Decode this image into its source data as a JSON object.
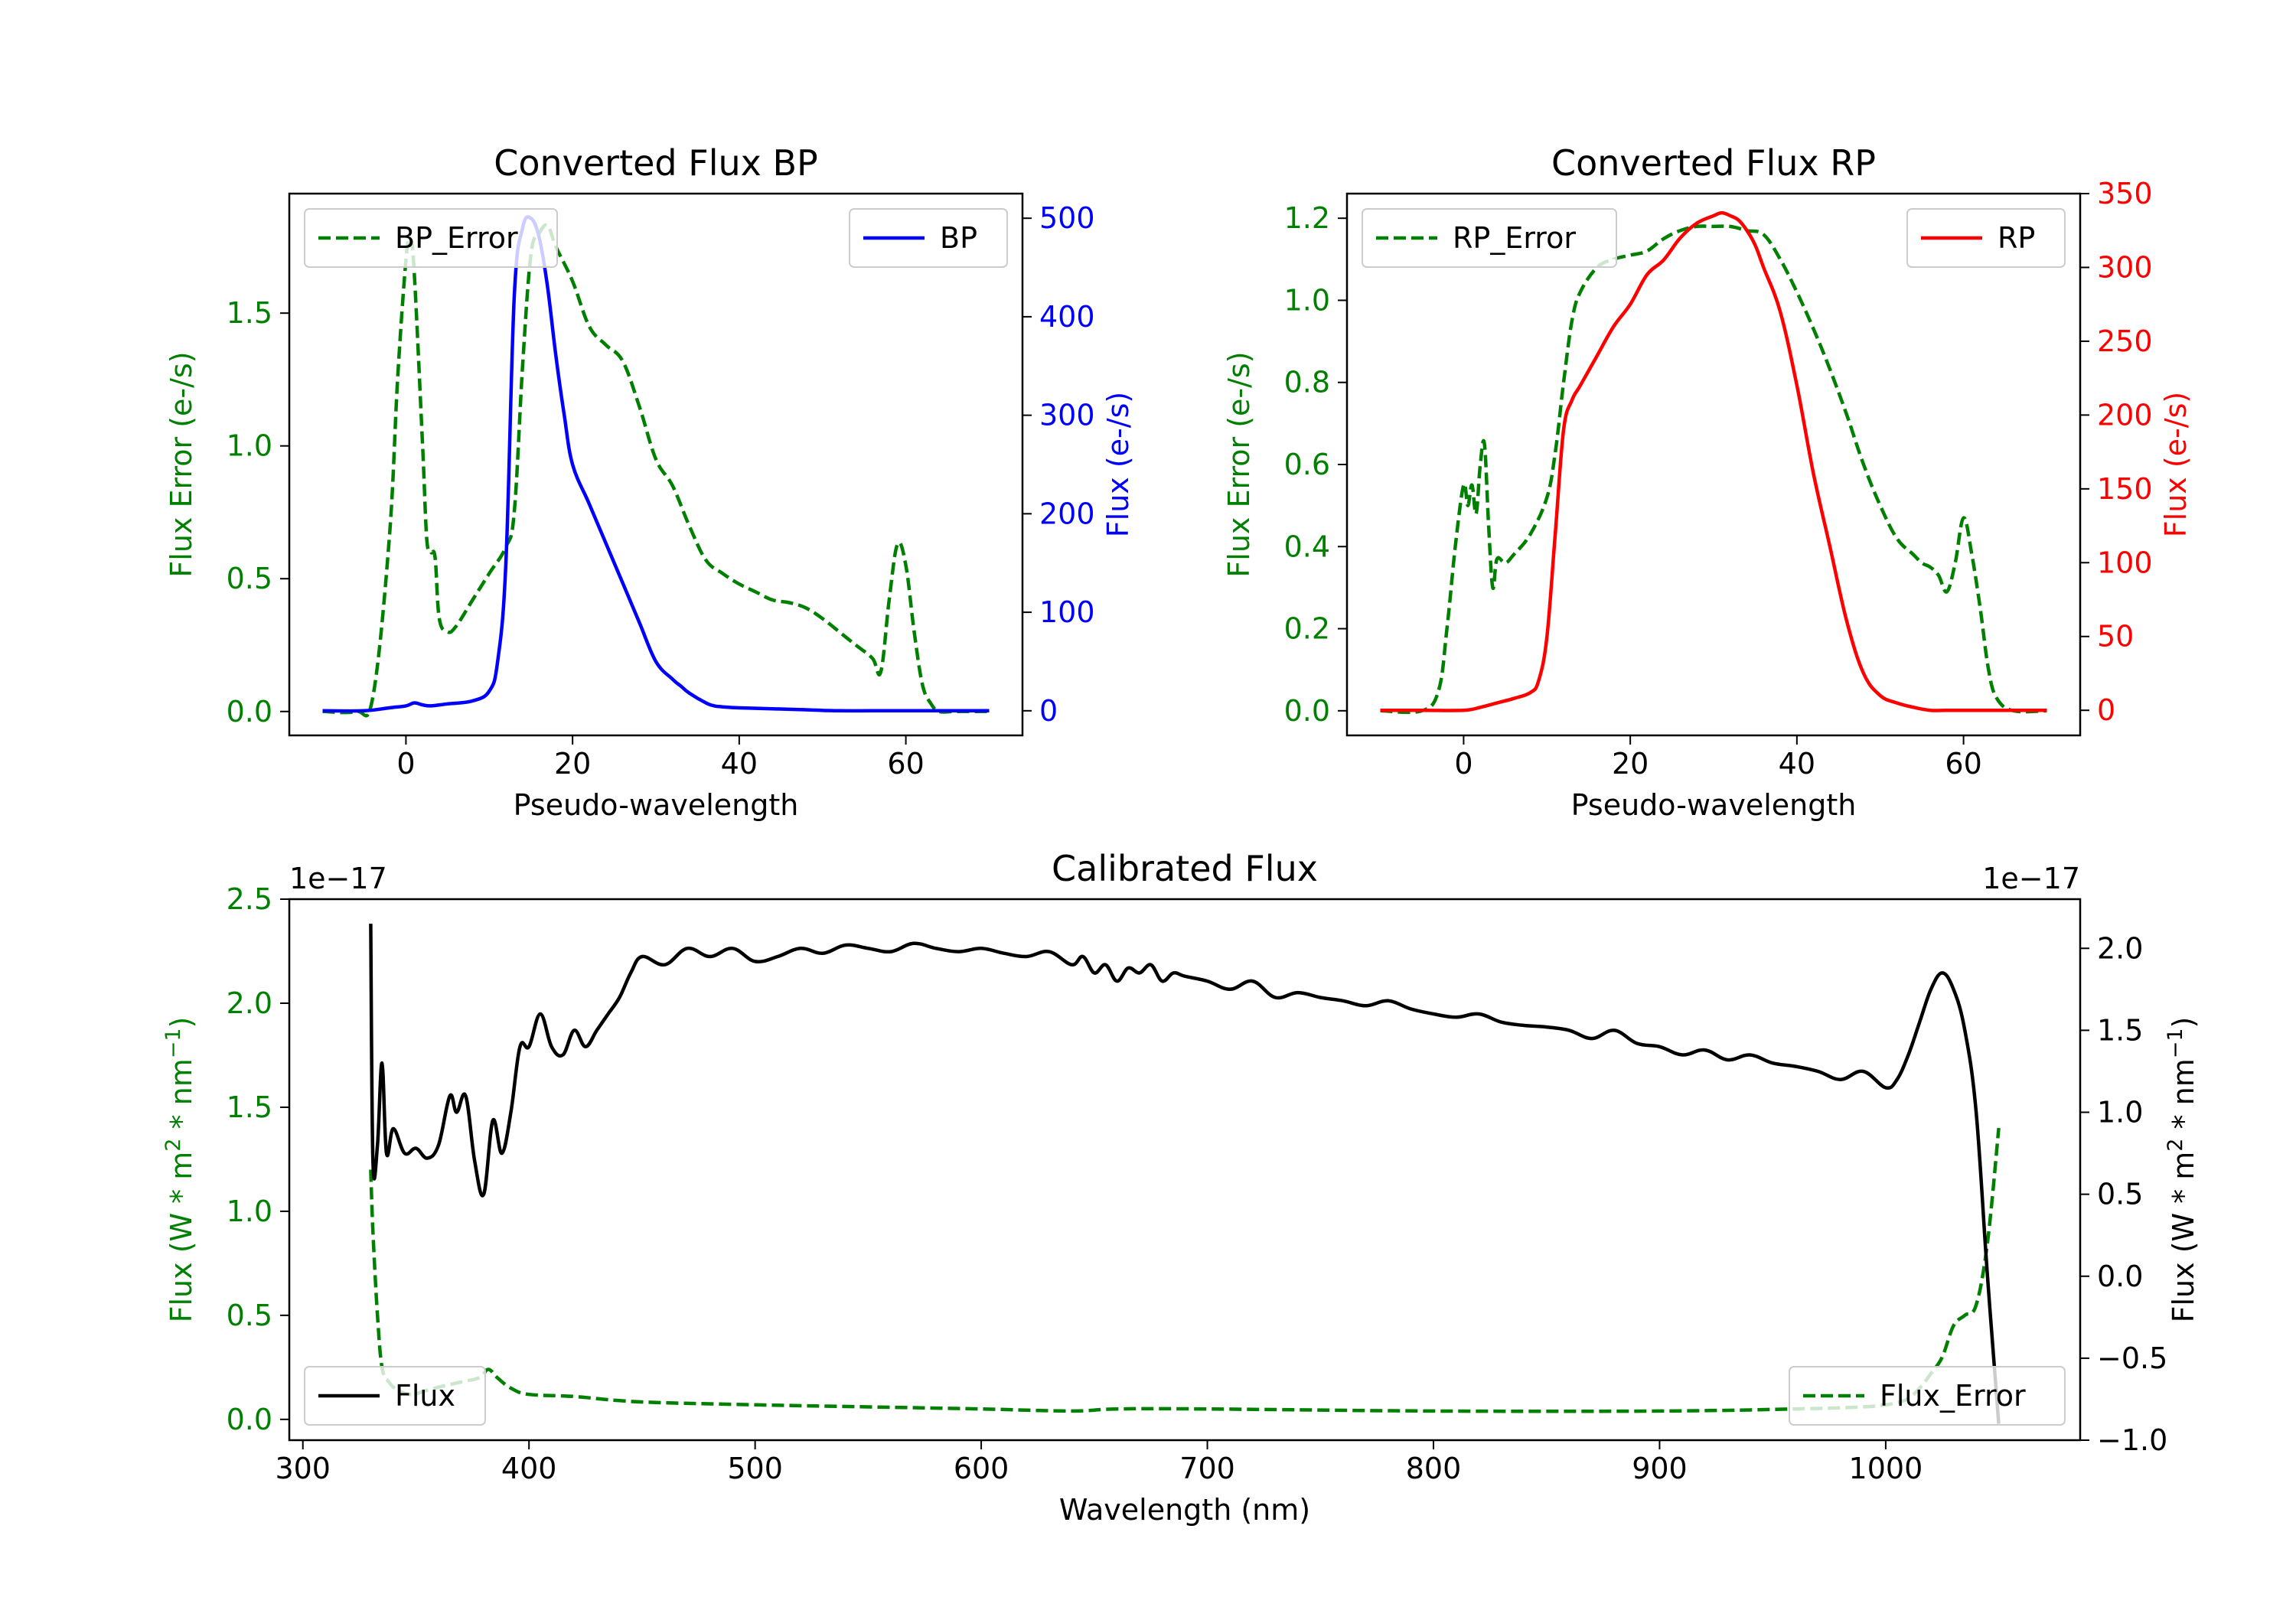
{
  "colors": {
    "error": "#008000",
    "bp": "#0000ff",
    "rp": "#ff0000",
    "flux": "#000000",
    "axis": "#000000"
  },
  "chart_data": [
    {
      "id": "bp",
      "type": "line",
      "title": "Converted Flux BP",
      "xlabel": "Pseudo-wavelength",
      "ylabel_left": "Flux Error (e-/s)",
      "ylabel_right": "Flux (e-/s)",
      "xlim": [
        -14,
        74
      ],
      "ylim_left": [
        -0.09,
        1.95
      ],
      "ylim_right": [
        -25,
        525
      ],
      "xticks": [
        0,
        20,
        40,
        60
      ],
      "yticks_left": [
        0.0,
        0.5,
        1.0,
        1.5
      ],
      "yticks_right": [
        0,
        100,
        200,
        300,
        400,
        500
      ],
      "ytick_labels_left": [
        "0.0",
        "0.5",
        "1.0",
        "1.5"
      ],
      "ytick_labels_right": [
        "0",
        "100",
        "200",
        "300",
        "400",
        "500"
      ],
      "xtick_labels": [
        "0",
        "20",
        "40",
        "60"
      ],
      "legend_left": {
        "label": "BP_Error",
        "position": "upper-left"
      },
      "legend_right": {
        "label": "BP",
        "position": "upper-right"
      },
      "series": [
        {
          "name": "BP_Error",
          "axis": "left",
          "style": "dashed",
          "color_key": "error",
          "x": [
            -10,
            -6,
            -4,
            -2,
            -1,
            0,
            0.5,
            1,
            2,
            2.5,
            3,
            3.5,
            4,
            5,
            6,
            8,
            10,
            12,
            13,
            14,
            15,
            16,
            17,
            18,
            20,
            22,
            24,
            26,
            28,
            30,
            32,
            34,
            36,
            38,
            40,
            42,
            44,
            46,
            48,
            50,
            52,
            54,
            56,
            57,
            58,
            59,
            60,
            61,
            62,
            63,
            64,
            66,
            70
          ],
          "y": [
            0.0,
            0.0,
            0.05,
            0.65,
            1.25,
            1.7,
            1.78,
            1.65,
            1.0,
            0.65,
            0.6,
            0.58,
            0.35,
            0.3,
            0.32,
            0.42,
            0.52,
            0.62,
            0.75,
            1.3,
            1.72,
            1.8,
            1.83,
            1.75,
            1.62,
            1.45,
            1.38,
            1.32,
            1.15,
            0.95,
            0.85,
            0.7,
            0.57,
            0.52,
            0.48,
            0.45,
            0.42,
            0.41,
            0.39,
            0.35,
            0.3,
            0.25,
            0.2,
            0.15,
            0.42,
            0.63,
            0.55,
            0.3,
            0.1,
            0.03,
            0.0,
            0.0,
            0.0
          ]
        },
        {
          "name": "BP",
          "axis": "right",
          "style": "solid",
          "color_key": "bp",
          "x": [
            -10,
            -5,
            -2,
            0,
            1,
            2,
            3,
            5,
            8,
            10,
            11,
            12,
            13,
            14,
            15,
            16,
            17,
            18,
            19,
            20,
            22,
            24,
            26,
            28,
            30,
            32,
            33,
            34,
            36,
            37,
            38,
            40,
            44,
            48,
            52,
            56,
            60,
            64,
            70
          ],
          "y": [
            0,
            0,
            3,
            5,
            8,
            6,
            5,
            7,
            10,
            20,
            50,
            150,
            420,
            490,
            500,
            480,
            430,
            360,
            300,
            250,
            210,
            170,
            130,
            90,
            50,
            32,
            25,
            18,
            8,
            5,
            4,
            3,
            2,
            1,
            0,
            0,
            0,
            0,
            0
          ]
        }
      ]
    },
    {
      "id": "rp",
      "type": "line",
      "title": "Converted Flux RP",
      "xlabel": "Pseudo-wavelength",
      "ylabel_left": "Flux Error (e-/s)",
      "ylabel_right": "Flux (e-/s)",
      "xlim": [
        -14,
        74
      ],
      "ylim_left": [
        -0.06,
        1.26
      ],
      "ylim_right": [
        -17,
        350
      ],
      "xticks": [
        0,
        20,
        40,
        60
      ],
      "yticks_left": [
        0.0,
        0.2,
        0.4,
        0.6,
        0.8,
        1.0,
        1.2
      ],
      "yticks_right": [
        0,
        50,
        100,
        150,
        200,
        250,
        300,
        350
      ],
      "ytick_labels_left": [
        "0.0",
        "0.2",
        "0.4",
        "0.6",
        "0.8",
        "1.0",
        "1.2"
      ],
      "ytick_labels_right": [
        "0",
        "50",
        "100",
        "150",
        "200",
        "250",
        "300",
        "350"
      ],
      "xtick_labels": [
        "0",
        "20",
        "40",
        "60"
      ],
      "legend_left": {
        "label": "RP_Error",
        "position": "upper-left"
      },
      "legend_right": {
        "label": "RP",
        "position": "upper-right"
      },
      "series": [
        {
          "name": "RP_Error",
          "axis": "left",
          "style": "dashed",
          "color_key": "error",
          "x": [
            -10,
            -5,
            -3,
            -2,
            -1,
            0,
            0.5,
            1,
            1.5,
            2,
            2.5,
            3,
            3.5,
            4,
            5,
            6,
            8,
            10,
            11,
            12,
            13,
            14,
            16,
            18,
            20,
            22,
            24,
            26,
            28,
            30,
            32,
            34,
            36,
            38,
            40,
            42,
            44,
            46,
            48,
            50,
            52,
            54,
            55,
            56,
            57,
            58,
            59,
            60,
            61,
            62,
            63,
            64,
            66,
            70
          ],
          "y": [
            0.0,
            0.0,
            0.05,
            0.2,
            0.4,
            0.55,
            0.5,
            0.55,
            0.48,
            0.6,
            0.65,
            0.45,
            0.3,
            0.37,
            0.36,
            0.38,
            0.43,
            0.52,
            0.63,
            0.8,
            0.95,
            1.02,
            1.08,
            1.1,
            1.11,
            1.12,
            1.15,
            1.17,
            1.18,
            1.18,
            1.18,
            1.17,
            1.16,
            1.1,
            1.02,
            0.93,
            0.83,
            0.72,
            0.6,
            0.5,
            0.42,
            0.38,
            0.36,
            0.35,
            0.33,
            0.29,
            0.36,
            0.47,
            0.38,
            0.25,
            0.1,
            0.03,
            0.0,
            0.0
          ]
        },
        {
          "name": "RP",
          "axis": "right",
          "style": "solid",
          "color_key": "rp",
          "x": [
            -10,
            -5,
            0,
            2,
            4,
            6,
            8,
            9,
            10,
            11,
            12,
            13,
            14,
            16,
            18,
            20,
            22,
            24,
            26,
            28,
            30,
            31,
            32,
            33,
            34,
            35,
            36,
            38,
            40,
            42,
            44,
            46,
            48,
            50,
            52,
            54,
            56,
            58,
            60,
            64,
            70
          ],
          "y": [
            0,
            0,
            0,
            2,
            5,
            8,
            12,
            20,
            50,
            120,
            190,
            210,
            220,
            240,
            260,
            275,
            295,
            305,
            320,
            330,
            335,
            337,
            335,
            332,
            325,
            315,
            300,
            270,
            220,
            160,
            110,
            60,
            25,
            10,
            5,
            2,
            0,
            0,
            0,
            0,
            0
          ]
        }
      ]
    },
    {
      "id": "calibrated",
      "type": "line",
      "title": "Calibrated Flux",
      "xlabel": "Wavelength (nm)",
      "ylabel_left": "Flux (W * m^2 * nm^-1)",
      "ylabel_right": "Flux (W * m^2 * nm^-1)",
      "offset_left": "1e−17",
      "offset_right": "1e−17",
      "xlim": [
        294,
        1086
      ],
      "ylim_left": [
        -0.1,
        2.5
      ],
      "ylim_right": [
        -1.0,
        2.3
      ],
      "xticks": [
        300,
        400,
        500,
        600,
        700,
        800,
        900,
        1000
      ],
      "xtick_labels": [
        "300",
        "400",
        "500",
        "600",
        "700",
        "800",
        "900",
        "1000"
      ],
      "yticks_left": [
        0.0,
        0.5,
        1.0,
        1.5,
        2.0,
        2.5
      ],
      "ytick_labels_left": [
        "0.0",
        "0.5",
        "1.0",
        "1.5",
        "2.0",
        "2.5"
      ],
      "yticks_right": [
        -1.0,
        -0.5,
        0.0,
        0.5,
        1.0,
        1.5,
        2.0
      ],
      "ytick_labels_right": [
        "−1.0",
        "−0.5",
        "0.0",
        "0.5",
        "1.0",
        "1.5",
        "2.0"
      ],
      "legend_flux": {
        "label": "Flux",
        "position": "lower-left"
      },
      "legend_error": {
        "label": "Flux_Error",
        "position": "lower-right"
      },
      "series": [
        {
          "name": "Flux",
          "axis": "right",
          "style": "solid",
          "color_key": "flux",
          "x": [
            330,
            331,
            333,
            335,
            337,
            340,
            345,
            350,
            355,
            360,
            365,
            368,
            372,
            376,
            380,
            384,
            388,
            392,
            396,
            400,
            405,
            410,
            415,
            420,
            425,
            430,
            435,
            440,
            445,
            450,
            460,
            470,
            480,
            490,
            500,
            510,
            520,
            530,
            540,
            550,
            560,
            570,
            580,
            590,
            600,
            610,
            620,
            630,
            640,
            645,
            650,
            655,
            660,
            665,
            670,
            675,
            680,
            685,
            690,
            700,
            710,
            720,
            730,
            740,
            750,
            760,
            770,
            780,
            790,
            800,
            810,
            820,
            830,
            840,
            850,
            860,
            870,
            880,
            890,
            900,
            910,
            920,
            930,
            940,
            950,
            960,
            970,
            980,
            990,
            1000,
            1005,
            1010,
            1015,
            1020,
            1025,
            1030,
            1035,
            1040,
            1045,
            1050
          ],
          "y": [
            2.15,
            0.7,
            0.8,
            1.3,
            0.75,
            0.9,
            0.75,
            0.78,
            0.72,
            0.8,
            1.1,
            1.0,
            1.1,
            0.7,
            0.5,
            0.95,
            0.75,
            1.0,
            1.4,
            1.4,
            1.6,
            1.4,
            1.35,
            1.5,
            1.4,
            1.5,
            1.6,
            1.7,
            1.85,
            1.95,
            1.9,
            2.0,
            1.95,
            2.0,
            1.92,
            1.95,
            2.0,
            1.97,
            2.02,
            2.0,
            1.98,
            2.03,
            2.0,
            1.98,
            2.0,
            1.97,
            1.95,
            1.98,
            1.9,
            1.95,
            1.85,
            1.9,
            1.8,
            1.88,
            1.85,
            1.9,
            1.8,
            1.85,
            1.83,
            1.8,
            1.75,
            1.8,
            1.7,
            1.73,
            1.7,
            1.68,
            1.65,
            1.68,
            1.63,
            1.6,
            1.58,
            1.6,
            1.55,
            1.53,
            1.52,
            1.5,
            1.45,
            1.5,
            1.42,
            1.4,
            1.35,
            1.38,
            1.32,
            1.35,
            1.3,
            1.28,
            1.25,
            1.2,
            1.25,
            1.15,
            1.2,
            1.35,
            1.55,
            1.75,
            1.85,
            1.75,
            1.5,
            1.0,
            0.0,
            -0.9
          ]
        },
        {
          "name": "Flux_Error",
          "axis": "left",
          "style": "dashed",
          "color_key": "error",
          "x": [
            330,
            331,
            333,
            335,
            338,
            342,
            348,
            355,
            362,
            370,
            378,
            382,
            386,
            392,
            400,
            420,
            440,
            460,
            500,
            550,
            600,
            640,
            660,
            700,
            800,
            900,
            960,
            990,
            1000,
            1005,
            1010,
            1015,
            1020,
            1025,
            1030,
            1035,
            1040,
            1045,
            1050
          ],
          "y": [
            1.2,
            0.9,
            0.5,
            0.25,
            0.18,
            0.14,
            0.12,
            0.14,
            0.16,
            0.18,
            0.2,
            0.24,
            0.2,
            0.15,
            0.12,
            0.11,
            0.09,
            0.08,
            0.07,
            0.06,
            0.05,
            0.04,
            0.05,
            0.05,
            0.04,
            0.04,
            0.05,
            0.06,
            0.07,
            0.08,
            0.1,
            0.15,
            0.22,
            0.3,
            0.45,
            0.5,
            0.55,
            0.85,
            1.4
          ]
        }
      ]
    }
  ]
}
